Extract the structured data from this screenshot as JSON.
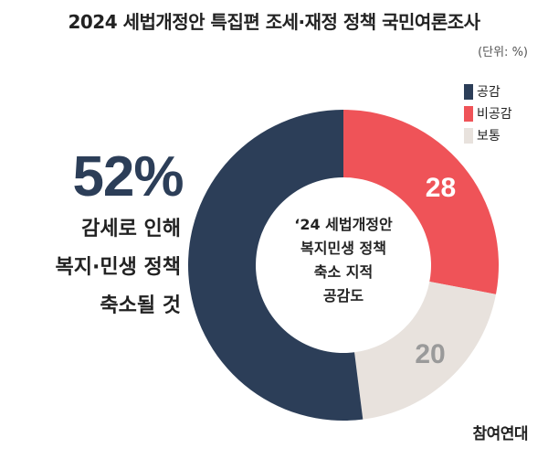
{
  "title": "2024 세법개정안 특집편 조세·재정 정책 국민여론조사",
  "unit_label": "(단위: %)",
  "headline": {
    "percent": "52%",
    "lines": [
      "감세로 인해",
      "복지·민생 정책",
      "축소될 것"
    ]
  },
  "center_label": [
    "‘24 세법개정안",
    "복지민생 정책",
    "축소 지적",
    "공감도"
  ],
  "logo_text": "참여연대",
  "colors": {
    "공감": "#2c3e58",
    "비공감": "#ef5358",
    "보통": "#e8e2dd"
  },
  "chart_data": {
    "type": "pie",
    "donut": true,
    "title": "2024 세법개정안 특집편 조세·재정 정책 국민여론조사",
    "unit": "(단위: %)",
    "legend_position": "top-right",
    "categories": [
      "공감",
      "비공감",
      "보통"
    ],
    "values": [
      52,
      28,
      20
    ],
    "value_labels": [
      "",
      "28",
      "20"
    ],
    "colors": [
      "#2c3e58",
      "#ef5358",
      "#e8e2dd"
    ]
  }
}
